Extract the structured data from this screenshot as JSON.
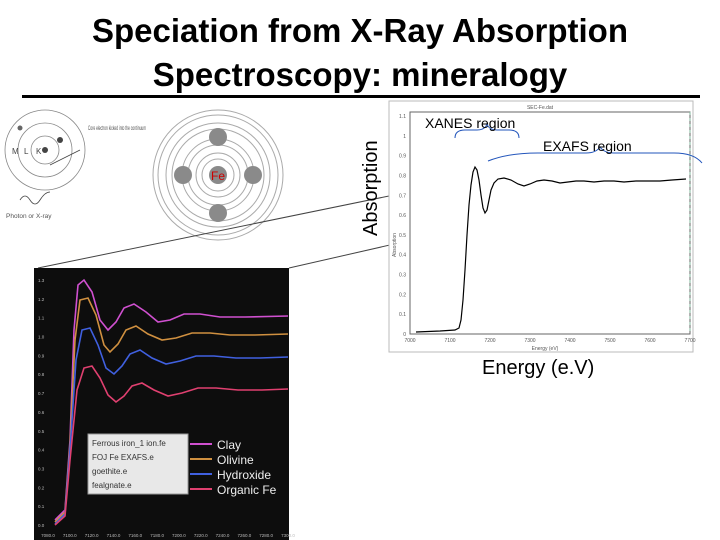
{
  "title": {
    "line1": "Speciation from X-Ray Absorption",
    "line2": "Spectroscopy: mineralogy"
  },
  "atom_diagram": {
    "shell_labels": [
      "M",
      "L",
      "K"
    ],
    "annotation": "Core electron kicked into the continuum",
    "photon_label": "Photon or X-ray",
    "center_label": "Fe"
  },
  "main_spectrum": {
    "ylabel": "Absorption",
    "xlabel": "Energy (e.V)",
    "region_labels": [
      "XANES region",
      "EXAFS region"
    ],
    "top_label": "SEC-Fe.dat",
    "inner_ylabel": "Absorption",
    "inner_xlabel": "Energy (eV)",
    "x_ticks": [
      "7000",
      "7100",
      "7200",
      "7300",
      "7400",
      "7500",
      "7600",
      "7700"
    ],
    "y_ticks": [
      "1.1",
      "1",
      "0.9",
      "0.8",
      "0.7",
      "0.6",
      "0.5",
      "0.4",
      "0.3",
      "0.2",
      "0.1",
      "0"
    ]
  },
  "reference_spectra": {
    "x_ticks": [
      "7080.0",
      "7100.0",
      "7120.0",
      "7140.0",
      "7160.0",
      "7180.0",
      "7200.0",
      "7220.0",
      "7240.0",
      "7260.0",
      "7280.0",
      "7300.0"
    ],
    "y_ticks": [
      "1.3",
      "1.2",
      "1.1",
      "1.0",
      "0.9",
      "0.8",
      "0.7",
      "0.6",
      "0.5",
      "0.4",
      "0.3",
      "0.2",
      "0.1",
      "0.0"
    ],
    "legend_files": [
      "Ferrous iron_1 ion.fe",
      "FOJ Fe EXAFS.e",
      "goethite.e",
      "fealgnate.e"
    ],
    "series": [
      {
        "name": "Clay",
        "color": "#d050d0"
      },
      {
        "name": "Olivine",
        "color": "#d09040"
      },
      {
        "name": "Hydroxide",
        "color": "#4060e0"
      },
      {
        "name": "Organic Fe",
        "color": "#e04070"
      }
    ]
  }
}
